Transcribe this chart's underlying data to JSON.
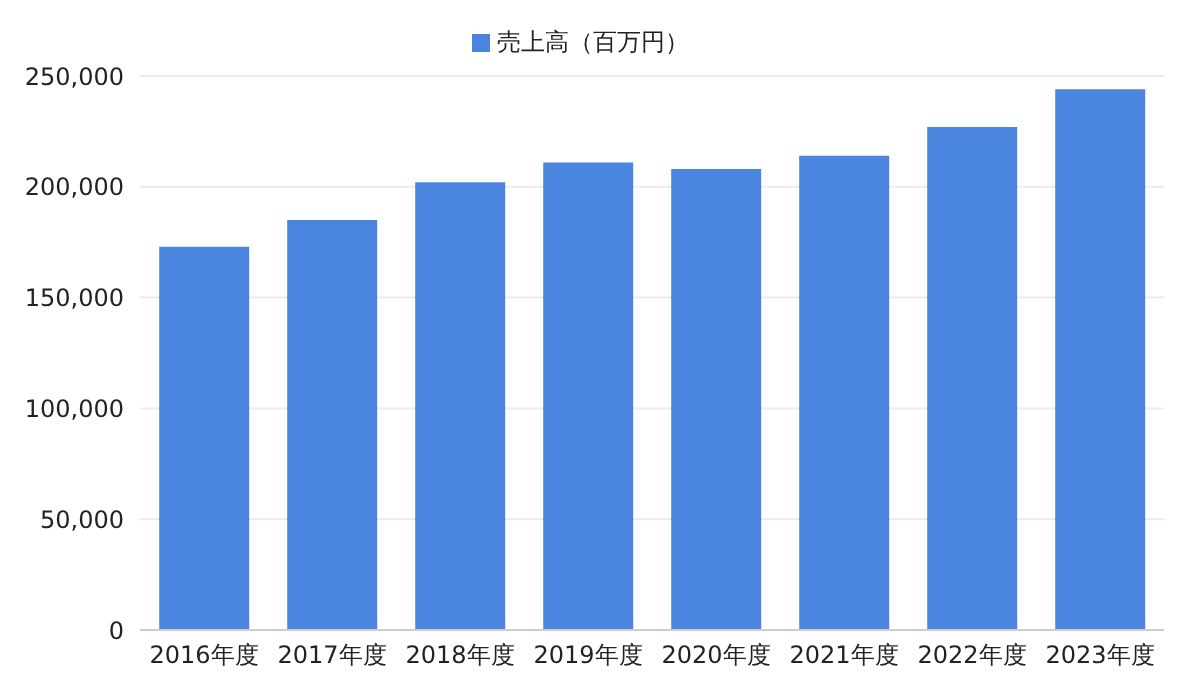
{
  "chart_data": {
    "type": "bar",
    "categories": [
      "2016年度",
      "2017年度",
      "2018年度",
      "2019年度",
      "2020年度",
      "2021年度",
      "2022年度",
      "2023年度"
    ],
    "series": [
      {
        "name": "売上高（百万円）",
        "color": "#4a86e0",
        "values": [
          173000,
          185000,
          202000,
          211000,
          208000,
          214000,
          227000,
          244000
        ]
      }
    ],
    "ylim": [
      0,
      250000
    ],
    "yticks": [
      0,
      {
        "value": 50000,
        "label": "50,000"
      },
      {
        "value": 100000,
        "label": "100,000"
      },
      {
        "value": 150000,
        "label": "150,000"
      },
      {
        "value": 200000,
        "label": "200,000"
      },
      {
        "value": 250000,
        "label": "250,000"
      }
    ],
    "grid": "y",
    "legend": "top"
  }
}
